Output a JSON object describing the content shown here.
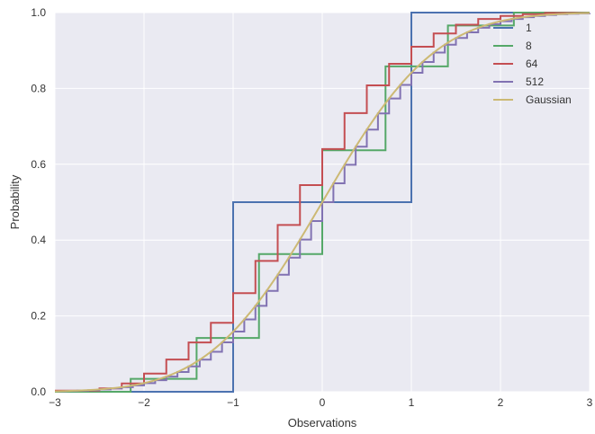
{
  "chart_data": {
    "type": "line",
    "xlabel": "Observations",
    "ylabel": "Probability",
    "xlim": [
      -3,
      3
    ],
    "ylim": [
      0,
      1
    ],
    "xticks": [
      -3,
      -2,
      -1,
      0,
      1,
      2,
      3
    ],
    "yticks": [
      0.0,
      0.2,
      0.4,
      0.6,
      0.8,
      1.0
    ],
    "xtick_labels": [
      "−3",
      "−2",
      "−1",
      "0",
      "1",
      "2",
      "3"
    ],
    "ytick_labels": [
      "0.0",
      "0.2",
      "0.4",
      "0.6",
      "0.8",
      "1.0"
    ],
    "grid": true,
    "background": "#eaeaf2",
    "legend_position": "top-right",
    "series": [
      {
        "name": "1",
        "color": "#4c72b0",
        "style": "step",
        "x": [
          -3,
          -1,
          -1,
          1,
          1,
          3
        ],
        "y": [
          0,
          0,
          0.5,
          0.5,
          1.0,
          1.0
        ]
      },
      {
        "name": "8",
        "color": "#55a868",
        "style": "step",
        "x": [
          -3,
          -2.15,
          -2.15,
          -1.41,
          -1.41,
          -0.71,
          -0.71,
          0,
          0,
          0.71,
          0.71,
          1.41,
          1.41,
          2.15,
          2.15,
          3
        ],
        "y": [
          0,
          0,
          0.034,
          0.034,
          0.142,
          0.142,
          0.363,
          0.363,
          0.637,
          0.637,
          0.858,
          0.858,
          0.966,
          0.966,
          1.0,
          1.0
        ]
      },
      {
        "name": "64",
        "color": "#c44e52",
        "style": "step",
        "x": [
          -3,
          -2.5,
          -2.5,
          -2.25,
          -2.25,
          -2.0,
          -2.0,
          -1.75,
          -1.75,
          -1.5,
          -1.5,
          -1.25,
          -1.25,
          -1.0,
          -1.0,
          -0.75,
          -0.75,
          -0.5,
          -0.5,
          -0.25,
          -0.25,
          0,
          0,
          0.25,
          0.25,
          0.5,
          0.5,
          0.75,
          0.75,
          1.0,
          1.0,
          1.25,
          1.25,
          1.5,
          1.5,
          1.75,
          1.75,
          2.0,
          2.0,
          2.25,
          2.25,
          2.5,
          2.5,
          3
        ],
        "y": [
          0.003,
          0.003,
          0.009,
          0.009,
          0.022,
          0.022,
          0.048,
          0.048,
          0.085,
          0.085,
          0.13,
          0.13,
          0.182,
          0.182,
          0.26,
          0.26,
          0.345,
          0.345,
          0.44,
          0.44,
          0.545,
          0.545,
          0.64,
          0.64,
          0.735,
          0.735,
          0.808,
          0.808,
          0.865,
          0.865,
          0.91,
          0.91,
          0.945,
          0.945,
          0.968,
          0.968,
          0.983,
          0.983,
          0.991,
          0.991,
          0.996,
          0.996,
          0.999,
          0.999
        ]
      },
      {
        "name": "512",
        "color": "#8172b2",
        "style": "smooth-step",
        "x": [],
        "y": []
      },
      {
        "name": "Gaussian",
        "color": "#ccb974",
        "style": "cdf",
        "x": [],
        "y": []
      }
    ]
  }
}
